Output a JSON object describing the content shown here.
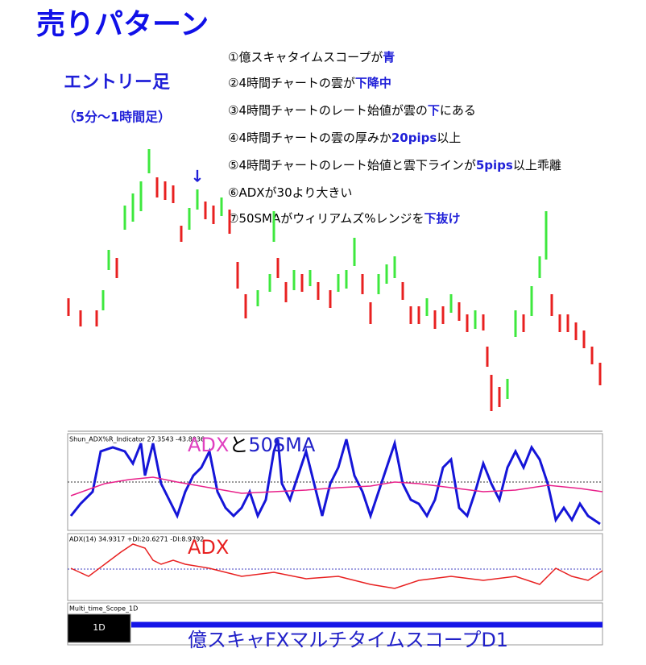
{
  "title": "売りパターン",
  "entry": {
    "label": "エントリー足",
    "timeframe": "（5分～1時間足）"
  },
  "conditions": [
    [
      {
        "text": "①億スキャタイムスコープが",
        "highlight": false
      },
      {
        "text": "青",
        "highlight": true
      }
    ],
    [
      {
        "text": "②4時間チャートの雲が",
        "highlight": false
      },
      {
        "text": "下降中",
        "highlight": true
      }
    ],
    [
      {
        "text": "③4時間チャートのレート始値が雲の",
        "highlight": false
      },
      {
        "text": "下",
        "highlight": true
      },
      {
        "text": "にある",
        "highlight": false
      }
    ],
    [
      {
        "text": "④4時間チャートの雲の厚みか",
        "highlight": false
      },
      {
        "text": "20pips",
        "highlight": true
      },
      {
        "text": "以上",
        "highlight": false
      }
    ],
    [
      {
        "text": "⑤4時間チャートのレート始値と雲下ラインが",
        "highlight": false
      },
      {
        "text": "5pips",
        "highlight": true
      },
      {
        "text": "以上乖離",
        "highlight": false
      }
    ],
    [
      {
        "text": "⑥ADXが30より大きい",
        "highlight": false
      }
    ],
    [
      {
        "text": "⑦50SMAがウィリアムズ%レンジを",
        "highlight": false
      },
      {
        "text": "下抜け",
        "highlight": true
      }
    ]
  ],
  "panels": [
    {
      "header": "Shun_ADX%R_Indicator 27.3543 -43.8036",
      "label": [
        {
          "text": "ADX",
          "color": "#e040c0"
        },
        {
          "text": "と",
          "color": "#000000"
        },
        {
          "text": "50SMA",
          "color": "#2020c8"
        }
      ]
    },
    {
      "header": "ADX(14) 34.9317 +DI:20.6271 -DI:8.9792",
      "label": [
        {
          "text": "ADX",
          "color": "#e82020"
        }
      ]
    },
    {
      "header": "Multi_time_Scope_1D",
      "button": "1D",
      "label": [
        {
          "text": "億スキャFXマルチタイムスコープD1",
          "color": "#2020c8"
        }
      ]
    }
  ]
}
